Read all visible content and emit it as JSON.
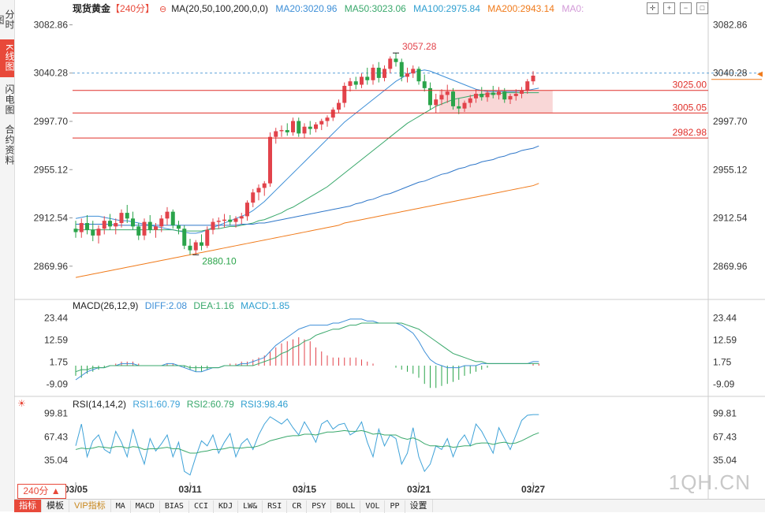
{
  "sidebar": {
    "tabs": [
      {
        "label": "分时图",
        "active": false
      },
      {
        "label": "K线图",
        "active": true
      },
      {
        "label": "闪电图",
        "active": false
      },
      {
        "label": "合约资料",
        "active": false
      }
    ]
  },
  "header": {
    "symbol": "现货黄金",
    "period": "【240分】",
    "ma_label": "MA(20,50,100,200,0,0)",
    "ma20": "MA20:3020.96",
    "ma50": "MA50:3023.06",
    "ma100": "MA100:2975.84",
    "ma200": "MA200:2943.14",
    "ma0": "MA0:"
  },
  "colors": {
    "up": "#e2434b",
    "down": "#2aa44a",
    "ma20": "#3e8fd7",
    "ma50": "#39a86b",
    "ma100": "#2f77c9",
    "ma200": "#f07a1a",
    "hline": "#e0302a",
    "zone": "#f6c6c6",
    "diff": "#3e8fd7",
    "dea": "#39a86b",
    "rsi1": "#3ea2d8",
    "rsi2": "#39a86b"
  },
  "chart_data": {
    "type": "candlestick",
    "title": "现货黄金 240分",
    "price_axis_ticks": [
      3082.86,
      3040.28,
      2997.7,
      2955.12,
      2912.54,
      2869.96
    ],
    "price_range": [
      2842,
      3095
    ],
    "x_labels": [
      "03/05",
      "03/11",
      "03/15",
      "03/21",
      "03/27"
    ],
    "x_label_index": [
      0,
      20,
      40,
      60,
      80
    ],
    "current_price": "3040.28",
    "high_annotation": "3057.28",
    "high_index": 56,
    "low_annotation": "2880.10",
    "low_index": 21,
    "support_resistance_lines": [
      3025.0,
      3005.05,
      2982.98
    ],
    "zone": {
      "start_index": 64,
      "end_index": 83,
      "low": 3005.05,
      "high": 3025.0
    },
    "candles": [
      [
        2903,
        2910,
        2895,
        2900
      ],
      [
        2900,
        2912,
        2895,
        2908
      ],
      [
        2908,
        2915,
        2898,
        2902
      ],
      [
        2902,
        2910,
        2892,
        2897
      ],
      [
        2897,
        2906,
        2890,
        2903
      ],
      [
        2903,
        2914,
        2898,
        2910
      ],
      [
        2910,
        2916,
        2902,
        2905
      ],
      [
        2905,
        2912,
        2898,
        2908
      ],
      [
        2908,
        2920,
        2904,
        2917
      ],
      [
        2917,
        2924,
        2908,
        2912
      ],
      [
        2912,
        2918,
        2902,
        2905
      ],
      [
        2905,
        2908,
        2893,
        2897
      ],
      [
        2897,
        2912,
        2893,
        2909
      ],
      [
        2909,
        2915,
        2899,
        2902
      ],
      [
        2902,
        2908,
        2895,
        2905
      ],
      [
        2905,
        2915,
        2900,
        2912
      ],
      [
        2912,
        2922,
        2906,
        2918
      ],
      [
        2918,
        2920,
        2903,
        2906
      ],
      [
        2906,
        2910,
        2898,
        2903
      ],
      [
        2903,
        2906,
        2885,
        2888
      ],
      [
        2888,
        2894,
        2880,
        2884
      ],
      [
        2884,
        2893,
        2880,
        2891
      ],
      [
        2891,
        2898,
        2884,
        2888
      ],
      [
        2888,
        2905,
        2886,
        2902
      ],
      [
        2902,
        2912,
        2898,
        2909
      ],
      [
        2909,
        2913,
        2903,
        2910
      ],
      [
        2910,
        2916,
        2904,
        2911
      ],
      [
        2911,
        2915,
        2906,
        2909
      ],
      [
        2909,
        2914,
        2904,
        2912
      ],
      [
        2912,
        2917,
        2907,
        2914
      ],
      [
        2914,
        2928,
        2910,
        2926
      ],
      [
        2926,
        2938,
        2922,
        2935
      ],
      [
        2935,
        2942,
        2928,
        2939
      ],
      [
        2939,
        2945,
        2932,
        2943
      ],
      [
        2943,
        2988,
        2940,
        2984
      ],
      [
        2984,
        2992,
        2978,
        2989
      ],
      [
        2989,
        2994,
        2984,
        2990
      ],
      [
        2990,
        2996,
        2985,
        2988
      ],
      [
        2988,
        3001,
        2985,
        2998
      ],
      [
        2998,
        3001,
        2984,
        2987
      ],
      [
        2987,
        2996,
        2983,
        2993
      ],
      [
        2993,
        2998,
        2986,
        2991
      ],
      [
        2991,
        2997,
        2988,
        2995
      ],
      [
        2995,
        3000,
        2990,
        2998
      ],
      [
        2998,
        3003,
        2993,
        3001
      ],
      [
        3001,
        3010,
        2998,
        3008
      ],
      [
        3008,
        3017,
        3005,
        3014
      ],
      [
        3014,
        3032,
        3010,
        3029
      ],
      [
        3029,
        3036,
        3024,
        3033
      ],
      [
        3033,
        3037,
        3026,
        3030
      ],
      [
        3030,
        3040,
        3027,
        3037
      ],
      [
        3037,
        3045,
        3030,
        3034
      ],
      [
        3034,
        3048,
        3030,
        3045
      ],
      [
        3045,
        3050,
        3032,
        3036
      ],
      [
        3036,
        3047,
        3033,
        3044
      ],
      [
        3044,
        3055,
        3040,
        3053
      ],
      [
        3053,
        3058,
        3046,
        3050
      ],
      [
        3050,
        3053,
        3033,
        3037
      ],
      [
        3037,
        3045,
        3032,
        3040
      ],
      [
        3040,
        3047,
        3036,
        3044
      ],
      [
        3044,
        3046,
        3030,
        3033
      ],
      [
        3033,
        3039,
        3024,
        3027
      ],
      [
        3027,
        3032,
        3008,
        3012
      ],
      [
        3012,
        3022,
        3005,
        3017
      ],
      [
        3017,
        3026,
        3012,
        3021
      ],
      [
        3021,
        3030,
        3014,
        3024
      ],
      [
        3024,
        3027,
        3008,
        3011
      ],
      [
        3011,
        3018,
        3004,
        3009
      ],
      [
        3009,
        3016,
        3006,
        3014
      ],
      [
        3014,
        3021,
        3010,
        3018
      ],
      [
        3018,
        3026,
        3014,
        3022
      ],
      [
        3022,
        3028,
        3016,
        3019
      ],
      [
        3019,
        3025,
        3015,
        3023
      ],
      [
        3023,
        3029,
        3018,
        3021
      ],
      [
        3021,
        3028,
        3017,
        3024
      ],
      [
        3024,
        3027,
        3014,
        3017
      ],
      [
        3017,
        3022,
        3013,
        3020
      ],
      [
        3020,
        3026,
        3016,
        3022
      ],
      [
        3022,
        3028,
        3018,
        3025
      ],
      [
        3025,
        3035,
        3022,
        3033
      ],
      [
        3033,
        3042,
        3030,
        3038
      ]
    ],
    "ma_series": [
      {
        "name": "MA20",
        "values": [
          2912,
          2913,
          2914,
          2914,
          2914,
          2913,
          2912,
          2911,
          2910,
          2910,
          2909,
          2908,
          2907,
          2906,
          2905,
          2904,
          2903,
          2902,
          2901,
          2900,
          2899,
          2899,
          2900,
          2902,
          2904,
          2906,
          2908,
          2910,
          2912,
          2914,
          2916,
          2919,
          2923,
          2927,
          2932,
          2937,
          2942,
          2947,
          2952,
          2957,
          2962,
          2967,
          2972,
          2977,
          2982,
          2987,
          2992,
          2997,
          3001,
          3005,
          3009,
          3013,
          3017,
          3021,
          3025,
          3029,
          3033,
          3036,
          3039,
          3041,
          3042,
          3043,
          3042,
          3040,
          3038,
          3036,
          3034,
          3032,
          3030,
          3028,
          3026,
          3025,
          3024,
          3024,
          3024,
          3024,
          3024,
          3024,
          3025,
          3025,
          3026,
          3027
        ]
      },
      {
        "name": "MA50",
        "values": [
          2902,
          2902,
          2902,
          2902,
          2902,
          2902,
          2902,
          2902,
          2902,
          2902,
          2902,
          2902,
          2902,
          2902,
          2902,
          2902,
          2902,
          2902,
          2901,
          2901,
          2901,
          2901,
          2901,
          2902,
          2903,
          2903,
          2904,
          2905,
          2905,
          2906,
          2907,
          2908,
          2910,
          2911,
          2913,
          2915,
          2917,
          2920,
          2922,
          2925,
          2928,
          2931,
          2934,
          2937,
          2940,
          2944,
          2948,
          2952,
          2956,
          2960,
          2964,
          2968,
          2972,
          2976,
          2980,
          2984,
          2988,
          2992,
          2996,
          2999,
          3002,
          3005,
          3008,
          3011,
          3013,
          3015,
          3017,
          3018,
          3019,
          3020,
          3021,
          3021,
          3022,
          3022,
          3022,
          3023,
          3023,
          3023,
          3023,
          3023,
          3023,
          3023
        ]
      },
      {
        "name": "MA100",
        "values": [
          2907,
          2907,
          2907,
          2907,
          2907,
          2907,
          2907,
          2906,
          2906,
          2906,
          2906,
          2906,
          2906,
          2906,
          2906,
          2906,
          2906,
          2906,
          2906,
          2906,
          2906,
          2906,
          2906,
          2906,
          2906,
          2906,
          2906,
          2906,
          2906,
          2907,
          2907,
          2907,
          2908,
          2908,
          2909,
          2910,
          2911,
          2912,
          2913,
          2914,
          2915,
          2916,
          2917,
          2918,
          2919,
          2920,
          2921,
          2922,
          2923,
          2925,
          2926,
          2928,
          2929,
          2931,
          2933,
          2934,
          2936,
          2938,
          2940,
          2942,
          2944,
          2945,
          2947,
          2949,
          2951,
          2952,
          2954,
          2956,
          2957,
          2959,
          2960,
          2962,
          2963,
          2964,
          2966,
          2967,
          2969,
          2970,
          2972,
          2973,
          2974,
          2976
        ]
      },
      {
        "name": "MA200",
        "values": [
          2860,
          2861,
          2862,
          2863,
          2864,
          2865,
          2866,
          2867,
          2868,
          2869,
          2870,
          2871,
          2872,
          2873,
          2874,
          2875,
          2876,
          2877,
          2878,
          2879,
          2880,
          2881,
          2882,
          2883,
          2884,
          2885,
          2886,
          2887,
          2888,
          2889,
          2890,
          2891,
          2892,
          2893,
          2894,
          2895,
          2896,
          2897,
          2898,
          2899,
          2900,
          2901,
          2902,
          2903,
          2904,
          2905,
          2906,
          2908,
          2909,
          2910,
          2911,
          2912,
          2913,
          2914,
          2915,
          2916,
          2917,
          2918,
          2919,
          2920,
          2921,
          2922,
          2923,
          2924,
          2925,
          2926,
          2927,
          2928,
          2929,
          2930,
          2931,
          2932,
          2933,
          2934,
          2935,
          2936,
          2937,
          2938,
          2939,
          2940,
          2941,
          2943
        ]
      }
    ],
    "macd": {
      "label": "MACD(26,12,9)",
      "diff_label": "DIFF:2.08",
      "dea_label": "DEA:1.16",
      "macd_label": "MACD:1.85",
      "ticks": [
        23.44,
        12.59,
        1.75,
        -9.09
      ],
      "range": [
        -14,
        28
      ],
      "diff": [
        -7,
        -5,
        -3,
        -2,
        -1,
        -1,
        0,
        0,
        1,
        1,
        1,
        0,
        0,
        0,
        0,
        0,
        1,
        1,
        0,
        -1,
        -2,
        -3,
        -3,
        -2,
        -1,
        -1,
        0,
        0,
        0,
        1,
        1,
        2,
        3,
        4,
        7,
        10,
        12,
        14,
        16,
        18,
        19,
        20,
        20,
        20,
        20,
        21,
        21,
        22,
        23,
        23,
        23,
        22,
        22,
        21,
        21,
        21,
        21,
        20,
        18,
        16,
        12,
        7,
        3,
        1,
        0,
        -1,
        -1,
        -1,
        0,
        0,
        0,
        1,
        1,
        1,
        1,
        1,
        1,
        1,
        1,
        1,
        2,
        2
      ],
      "dea": [
        -3,
        -2,
        -2,
        -1,
        -1,
        -1,
        0,
        0,
        0,
        0,
        0,
        0,
        0,
        0,
        0,
        0,
        0,
        0,
        0,
        0,
        -1,
        -1,
        -1,
        -1,
        -1,
        -1,
        0,
        0,
        0,
        0,
        0,
        0,
        1,
        2,
        3,
        4,
        6,
        7,
        9,
        10,
        12,
        13,
        15,
        16,
        17,
        18,
        18,
        19,
        20,
        20,
        21,
        21,
        21,
        21,
        21,
        21,
        21,
        21,
        20,
        19,
        18,
        16,
        14,
        12,
        10,
        8,
        6,
        5,
        4,
        3,
        2,
        2,
        1,
        1,
        1,
        1,
        1,
        1,
        1,
        1,
        1,
        1
      ],
      "hist": [
        -5,
        -6,
        -4,
        -3,
        -2,
        -1,
        0,
        1,
        2,
        2,
        2,
        1,
        0,
        0,
        0,
        0,
        1,
        1,
        0,
        -1,
        -2,
        -3,
        -3,
        -2,
        0,
        0,
        0,
        1,
        1,
        2,
        2,
        3,
        4,
        5,
        7,
        9,
        11,
        12,
        13,
        14,
        13,
        12,
        9,
        7,
        5,
        4,
        4,
        4,
        4,
        4,
        3,
        2,
        1,
        0,
        0,
        0,
        -1,
        -2,
        -3,
        -4,
        -6,
        -9,
        -11,
        -11,
        -10,
        -9,
        -8,
        -7,
        -5,
        -4,
        -3,
        -2,
        -1,
        0,
        0,
        0,
        0,
        0,
        0,
        0,
        1,
        1
      ]
    },
    "rsi": {
      "label": "RSI(14,14,2)",
      "rsi1_label": "RSI1:60.79",
      "rsi2_label": "RSI2:60.79",
      "rsi3_label": "RSI3:98.46",
      "ticks": [
        99.81,
        67.43,
        35.04
      ],
      "range": [
        5,
        110
      ],
      "rsi_fast": [
        55,
        85,
        40,
        62,
        70,
        50,
        45,
        75,
        60,
        40,
        78,
        52,
        30,
        65,
        48,
        58,
        70,
        40,
        60,
        20,
        15,
        40,
        62,
        55,
        70,
        45,
        60,
        72,
        40,
        58,
        65,
        50,
        70,
        85,
        95,
        90,
        85,
        92,
        80,
        70,
        88,
        75,
        60,
        85,
        90,
        78,
        84,
        86,
        70,
        75,
        88,
        60,
        40,
        78,
        55,
        70,
        65,
        30,
        45,
        80,
        40,
        20,
        30,
        55,
        50,
        65,
        40,
        60,
        70,
        55,
        85,
        75,
        60,
        45,
        80,
        65,
        50,
        70,
        90,
        97,
        98,
        98
      ],
      "rsi_slow": [
        50,
        52,
        51,
        52,
        54,
        53,
        52,
        54,
        54,
        52,
        54,
        53,
        50,
        51,
        51,
        52,
        53,
        51,
        51,
        48,
        45,
        45,
        47,
        48,
        50,
        50,
        51,
        53,
        52,
        52,
        53,
        53,
        55,
        58,
        62,
        64,
        66,
        68,
        69,
        69,
        71,
        71,
        70,
        72,
        74,
        74,
        75,
        76,
        75,
        75,
        76,
        74,
        71,
        72,
        70,
        70,
        70,
        66,
        64,
        66,
        63,
        58,
        55,
        55,
        54,
        55,
        53,
        54,
        55,
        55,
        58,
        59,
        59,
        57,
        59,
        60,
        58,
        59,
        62,
        66,
        70,
        73
      ]
    }
  },
  "bottom_bar": {
    "period_selector": "240分 ▲",
    "items": [
      "指标",
      "模板",
      "VIP指标",
      "MA",
      "MACD",
      "BIAS",
      "CCI",
      "KDJ",
      "LW&",
      "RSI",
      "CR",
      "PSY",
      "BOLL",
      "VOL",
      "PP",
      "设置"
    ]
  },
  "watermark": "1QH.CN"
}
